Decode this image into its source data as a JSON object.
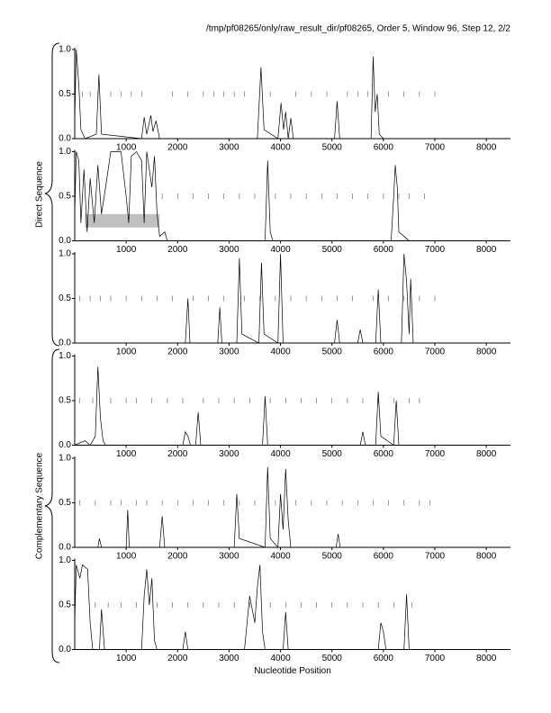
{
  "page": {
    "header": "/tmp/pf08265/only/raw_result_dir/pf08265, Order 5, Window 96, Step 12, 2/2",
    "groups": [
      "Direct Sequence",
      "Complementary Sequence"
    ]
  },
  "chart_data": [
    {
      "type": "line",
      "xlim": [
        0,
        8470
      ],
      "ylim": [
        0,
        1
      ],
      "xticks": [
        1000,
        2000,
        3000,
        4000,
        5000,
        6000,
        7000,
        8000
      ],
      "yticks": [
        {
          "value": 0,
          "label": "0.0"
        },
        0.5,
        {
          "value": 1,
          "label": "1.0"
        }
      ],
      "x": [
        0,
        30,
        80,
        120,
        200,
        420,
        470,
        520,
        1300,
        1350,
        1400,
        1480,
        1520,
        1580,
        1650,
        3550,
        3620,
        3680,
        3950,
        4010,
        4060,
        4100,
        4150,
        4200,
        4250,
        5050,
        5100,
        5150,
        5760,
        5800,
        5840,
        5880,
        5920,
        6000,
        8470
      ],
      "values": [
        0.2,
        1.0,
        0.6,
        0.1,
        0,
        0.05,
        0.72,
        0.05,
        0,
        0.24,
        0.05,
        0.26,
        0.08,
        0.2,
        0,
        0,
        0.8,
        0.1,
        0,
        0.4,
        0.1,
        0.3,
        0,
        0.23,
        0,
        0,
        0.42,
        0,
        0,
        0.92,
        0.3,
        0.5,
        0.05,
        0,
        0
      ],
      "stops": [
        150,
        300,
        450,
        700,
        900,
        1100,
        1300,
        1900,
        2200,
        2500,
        2700,
        2900,
        3100,
        3300,
        3800,
        4300,
        4600,
        4900,
        5300,
        5500,
        5700,
        6100,
        6400,
        6700,
        7000
      ]
    },
    {
      "type": "line",
      "xlim": [
        0,
        8470
      ],
      "ylim": [
        0,
        1
      ],
      "xticks": [
        1000,
        2000,
        3000,
        4000,
        5000,
        6000,
        7000,
        8000
      ],
      "yticks": [
        {
          "value": 0,
          "label": "0.0"
        },
        0.5,
        {
          "value": 1,
          "label": "1.0"
        }
      ],
      "x": [
        0,
        30,
        80,
        120,
        180,
        240,
        300,
        380,
        450,
        520,
        600,
        700,
        900,
        1000,
        1050,
        1100,
        1200,
        1300,
        1350,
        1400,
        1500,
        1550,
        1600,
        1650,
        1750,
        1800,
        3700,
        3750,
        3800,
        3850,
        6150,
        6200,
        6230,
        6270,
        6300,
        6400,
        6500,
        8470
      ],
      "values": [
        0.3,
        1.0,
        0.9,
        0.2,
        0.8,
        0.1,
        0.7,
        0.2,
        0.85,
        0.3,
        0.6,
        1.0,
        1.0,
        0.5,
        0.2,
        0.95,
        1.0,
        0.9,
        0.2,
        1.0,
        0.6,
        0.95,
        0.3,
        0.05,
        0.1,
        0,
        0,
        0.9,
        0.1,
        0,
        0,
        0.5,
        0.85,
        0.6,
        0.1,
        0.05,
        0,
        0
      ],
      "stops": [
        1700,
        2000,
        2300,
        2600,
        2900,
        3200,
        3500,
        3900,
        4200,
        4500,
        4800,
        5100,
        5400,
        5700,
        6000,
        6300,
        6500,
        6800
      ],
      "highlight": {
        "x": [
          200,
          1650
        ],
        "y": [
          0.15,
          0.3
        ]
      }
    },
    {
      "type": "line",
      "xlim": [
        0,
        8470
      ],
      "ylim": [
        0,
        1
      ],
      "xticks": [
        1000,
        2000,
        3000,
        4000,
        5000,
        6000,
        7000,
        8000
      ],
      "yticks": [
        {
          "value": 0,
          "label": "0.0"
        },
        0.5,
        {
          "value": 1,
          "label": "1.0"
        }
      ],
      "x": [
        0,
        2150,
        2200,
        2240,
        2780,
        2820,
        2860,
        3150,
        3200,
        3250,
        3580,
        3630,
        3680,
        3950,
        4000,
        4050,
        5050,
        5100,
        5150,
        5500,
        5550,
        5600,
        5850,
        5900,
        5950,
        6350,
        6400,
        6450,
        6500,
        6530,
        6580,
        8470
      ],
      "values": [
        0,
        0,
        0.5,
        0,
        0,
        0.4,
        0,
        0,
        0.95,
        0.1,
        0,
        0.9,
        0.1,
        0,
        1.0,
        0,
        0,
        0.26,
        0,
        0,
        0.15,
        0,
        0,
        0.6,
        0,
        0,
        1.0,
        0.7,
        0.1,
        0.72,
        0,
        0
      ],
      "stops": [
        100,
        300,
        500,
        700,
        1000,
        1300,
        1600,
        1900,
        2300,
        2600,
        2900,
        3300,
        3600,
        3900,
        4200,
        4500,
        4800,
        5100,
        5400,
        5800,
        6100,
        6400,
        6700,
        7000
      ]
    },
    {
      "type": "line",
      "xlim": [
        0,
        8470
      ],
      "ylim": [
        0,
        1
      ],
      "xticks": [
        1000,
        2000,
        3000,
        4000,
        5000,
        6000,
        7000,
        8000
      ],
      "yticks": [
        {
          "value": 0,
          "label": "0.0"
        },
        0.5,
        {
          "value": 1,
          "label": "1.0"
        }
      ],
      "x": [
        0,
        200,
        300,
        400,
        450,
        500,
        550,
        600,
        2100,
        2150,
        2200,
        2250,
        2350,
        2400,
        2450,
        3650,
        3700,
        3750,
        5550,
        5600,
        5650,
        5850,
        5900,
        5950,
        6200,
        6250,
        6300,
        8470
      ],
      "values": [
        0,
        0.05,
        0,
        0.1,
        0.88,
        0.3,
        0.05,
        0,
        0,
        0.15,
        0.1,
        0,
        0,
        0.37,
        0,
        0,
        0.55,
        0,
        0,
        0.15,
        0,
        0,
        0.6,
        0.1,
        0,
        0.5,
        0,
        0
      ],
      "stops": [
        100,
        350,
        700,
        1000,
        1200,
        1500,
        1800,
        2100,
        2500,
        2800,
        3100,
        3400,
        3800,
        4100,
        4400,
        4700,
        5000,
        5300,
        5600,
        5900,
        6200,
        6500,
        6700
      ]
    },
    {
      "type": "line",
      "xlim": [
        0,
        8470
      ],
      "ylim": [
        0,
        1
      ],
      "xticks": [
        1000,
        2000,
        3000,
        4000,
        5000,
        6000,
        7000,
        8000
      ],
      "yticks": [
        {
          "value": 0,
          "label": "0.0"
        },
        0.5,
        {
          "value": 1,
          "label": "1.0"
        }
      ],
      "x": [
        0,
        450,
        480,
        520,
        1000,
        1030,
        1060,
        1650,
        1700,
        1750,
        3100,
        3150,
        3200,
        3700,
        3750,
        3800,
        3950,
        4000,
        4050,
        4100,
        4150,
        4200,
        5080,
        5120,
        5160,
        8470
      ],
      "values": [
        0,
        0,
        0.1,
        0,
        0,
        0.42,
        0,
        0,
        0.35,
        0,
        0,
        0.6,
        0.1,
        0,
        0.9,
        0.1,
        0,
        0.6,
        0.2,
        0.88,
        0.3,
        0,
        0,
        0.15,
        0,
        0
      ],
      "stops": [
        100,
        400,
        700,
        900,
        1200,
        1400,
        1700,
        2000,
        2300,
        2600,
        2900,
        3200,
        3500,
        3900,
        4300,
        4600,
        4900,
        5200,
        5500,
        5800,
        6100,
        6400,
        6700,
        6900
      ]
    },
    {
      "type": "line",
      "xlim": [
        0,
        8470
      ],
      "ylim": [
        0,
        1
      ],
      "xlabel": "Nucleotide Position",
      "xticks": [
        1000,
        2000,
        3000,
        4000,
        5000,
        6000,
        7000,
        8000
      ],
      "yticks": [
        {
          "value": 0,
          "label": "0.0"
        },
        0.5,
        {
          "value": 1,
          "label": "1.0"
        }
      ],
      "x": [
        0,
        30,
        100,
        150,
        250,
        300,
        350,
        480,
        520,
        580,
        1300,
        1350,
        1400,
        1450,
        1500,
        1550,
        1600,
        2100,
        2150,
        2200,
        3300,
        3400,
        3500,
        3550,
        3600,
        3650,
        3700,
        4050,
        4100,
        4150,
        5900,
        5950,
        6000,
        6050,
        6400,
        6450,
        6500,
        8470
      ],
      "values": [
        0.3,
        0.95,
        0.8,
        0.95,
        0.9,
        0.3,
        0,
        0,
        0.45,
        0,
        0,
        0.6,
        0.9,
        0.5,
        0.8,
        0.1,
        0,
        0,
        0.2,
        0,
        0,
        0.6,
        0.3,
        0.7,
        0.95,
        0.2,
        0,
        0,
        0.42,
        0,
        0,
        0.3,
        0.2,
        0,
        0,
        0.62,
        0,
        0
      ],
      "stops": [
        400,
        650,
        900,
        1200,
        1600,
        1900,
        2200,
        2500,
        2800,
        3100,
        3400,
        3800,
        4100,
        4400,
        4700,
        5000,
        5300,
        5600,
        5900,
        6200,
        6550
      ]
    }
  ]
}
